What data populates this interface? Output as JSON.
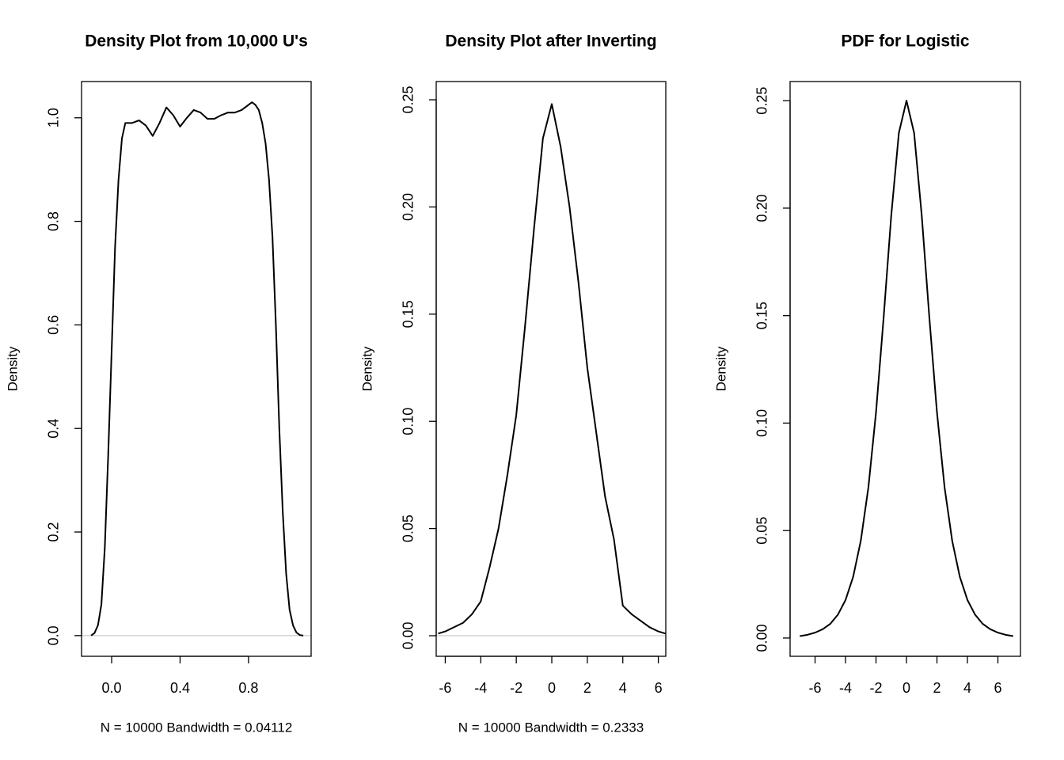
{
  "chart_data": [
    {
      "type": "line",
      "title": "Density Plot from 10,000 U's",
      "x_label": "N = 10000   Bandwidth = 0.04112",
      "y_label": "Density",
      "color": "#000000",
      "zero_line": true,
      "xlim": [
        -0.176,
        1.166
      ],
      "ylim": [
        -0.04,
        1.07
      ],
      "xticks": [
        {
          "value": 0,
          "label": "0.0"
        },
        0.4,
        0.8
      ],
      "yticks": [
        {
          "value": 0,
          "label": "0.0"
        },
        0.2,
        0.4,
        0.6,
        0.8,
        {
          "value": 1,
          "label": "1.0"
        }
      ],
      "x": [
        -0.12,
        -0.1,
        -0.08,
        -0.06,
        -0.04,
        -0.02,
        0.0,
        0.02,
        0.04,
        0.06,
        0.08,
        0.1,
        0.12,
        0.16,
        0.2,
        0.24,
        0.28,
        0.32,
        0.36,
        0.4,
        0.44,
        0.48,
        0.52,
        0.56,
        0.6,
        0.64,
        0.68,
        0.72,
        0.76,
        0.8,
        0.82,
        0.84,
        0.86,
        0.88,
        0.9,
        0.92,
        0.94,
        0.96,
        0.98,
        1.0,
        1.02,
        1.04,
        1.06,
        1.08,
        1.1,
        1.12
      ],
      "values": [
        0.0,
        0.005,
        0.02,
        0.06,
        0.17,
        0.35,
        0.55,
        0.75,
        0.88,
        0.96,
        0.99,
        0.99,
        0.99,
        0.995,
        0.985,
        0.965,
        0.99,
        1.02,
        1.005,
        0.983,
        1.0,
        1.015,
        1.01,
        0.998,
        0.998,
        1.005,
        1.01,
        1.01,
        1.015,
        1.025,
        1.03,
        1.025,
        1.015,
        0.99,
        0.95,
        0.88,
        0.77,
        0.6,
        0.4,
        0.24,
        0.12,
        0.05,
        0.02,
        0.006,
        0.001,
        0.0
      ]
    },
    {
      "type": "line",
      "title": "Density Plot after Inverting",
      "x_label": "N = 10000   Bandwidth = 0.2333",
      "y_label": "Density",
      "color": "#000000",
      "zero_line": true,
      "xlim": [
        -6.51,
        6.42
      ],
      "ylim": [
        -0.0096,
        0.2585
      ],
      "xticks": [
        -6,
        -4,
        -2,
        0,
        2,
        4,
        6
      ],
      "yticks": [
        {
          "value": 0,
          "label": "0.00"
        },
        0.05,
        {
          "value": 0.1,
          "label": "0.10"
        },
        0.15,
        {
          "value": 0.2,
          "label": "0.20"
        },
        0.25
      ],
      "x": [
        -6.4,
        -6,
        -5,
        -4.5,
        -4,
        -3.5,
        -3,
        -2.5,
        -2,
        -1.5,
        -1,
        -0.5,
        0,
        0.5,
        1,
        1.5,
        2,
        2.5,
        3,
        3.5,
        4,
        4.5,
        5,
        5.5,
        6,
        6.4
      ],
      "values": [
        0.001,
        0.002,
        0.006,
        0.01,
        0.016,
        0.032,
        0.05,
        0.075,
        0.103,
        0.145,
        0.19,
        0.232,
        0.248,
        0.228,
        0.2,
        0.165,
        0.125,
        0.095,
        0.065,
        0.045,
        0.014,
        0.01,
        0.007,
        0.004,
        0.002,
        0.001
      ]
    },
    {
      "type": "line",
      "title": "PDF for Logistic",
      "y_label": "Density",
      "color": "#000000",
      "zero_line": false,
      "xlim": [
        -7.64,
        7.48
      ],
      "ylim": [
        -0.0085,
        0.2589
      ],
      "xticks": [
        -6,
        -4,
        -2,
        0,
        2,
        4,
        6
      ],
      "yticks": [
        {
          "value": 0,
          "label": "0.00"
        },
        0.05,
        {
          "value": 0.1,
          "label": "0.10"
        },
        0.15,
        {
          "value": 0.2,
          "label": "0.20"
        },
        0.25
      ],
      "x": [
        -7,
        -6.5,
        -6,
        -5.5,
        -5,
        -4.5,
        -4,
        -3.5,
        -3,
        -2.5,
        -2,
        -1.5,
        -1,
        -0.5,
        0,
        0.5,
        1,
        1.5,
        2,
        2.5,
        3,
        3.5,
        4,
        4.5,
        5,
        5.5,
        6,
        6.5,
        7
      ],
      "values": [
        0.0009,
        0.0015,
        0.0025,
        0.0041,
        0.0066,
        0.0109,
        0.0177,
        0.0285,
        0.0452,
        0.0701,
        0.105,
        0.1491,
        0.1966,
        0.235,
        0.25,
        0.235,
        0.1966,
        0.1491,
        0.105,
        0.0701,
        0.0452,
        0.0285,
        0.0177,
        0.0109,
        0.0066,
        0.0041,
        0.0025,
        0.0015,
        0.0009
      ]
    }
  ]
}
